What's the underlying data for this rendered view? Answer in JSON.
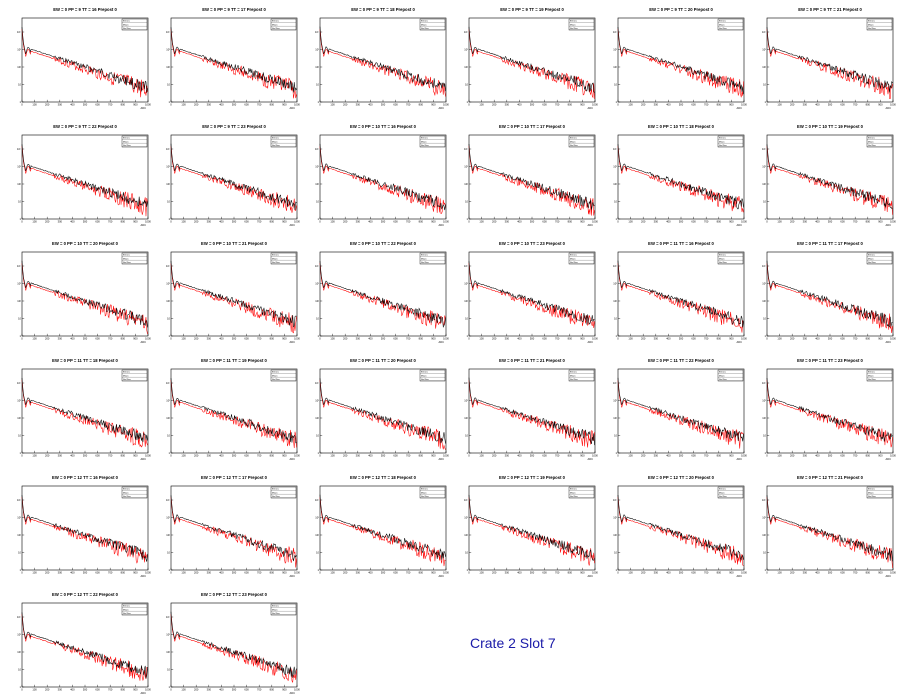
{
  "footer": "Crate 2 Slot 7",
  "colors": {
    "data": "#000000",
    "reference": "#ff0000",
    "footer": "#1a1aa8"
  },
  "chart_data": {
    "type": "line",
    "x_axis_label": "ADC",
    "y_scale": "log",
    "xlim": [
      0,
      1000
    ],
    "x_ticks": [
      0,
      100,
      200,
      300,
      400,
      500,
      600,
      700,
      800,
      900,
      1000
    ],
    "y_ticks": [
      "10⁴",
      "10³",
      "10²",
      "10",
      "1"
    ],
    "stat_labels": [
      "Entries",
      "Mean",
      "Std Dev"
    ],
    "series_colors": [
      "#000000",
      "#ff0000"
    ],
    "panels": [
      {
        "title": "EW = 0 PP = 9 TT = 16 Prepost 0"
      },
      {
        "title": "EW = 0 PP = 9 TT = 17 Prepost 0"
      },
      {
        "title": "EW = 0 PP = 9 TT = 18 Prepost 0"
      },
      {
        "title": "EW = 0 PP = 9 TT = 19 Prepost 0"
      },
      {
        "title": "EW = 0 PP = 9 TT = 20 Prepost 0"
      },
      {
        "title": "EW = 0 PP = 9 TT = 21 Prepost 0"
      },
      {
        "title": "EW = 0 PP = 9 TT = 22 Prepost 0"
      },
      {
        "title": "EW = 0 PP = 9 TT = 23 Prepost 0"
      },
      {
        "title": "EW = 0 PP = 10 TT = 16 Prepost 0"
      },
      {
        "title": "EW = 0 PP = 10 TT = 17 Prepost 0"
      },
      {
        "title": "EW = 0 PP = 10 TT = 18 Prepost 0"
      },
      {
        "title": "EW = 0 PP = 10 TT = 19 Prepost 0"
      },
      {
        "title": "EW = 0 PP = 10 TT = 20 Prepost 0"
      },
      {
        "title": "EW = 0 PP = 10 TT = 21 Prepost 0"
      },
      {
        "title": "EW = 0 PP = 10 TT = 22 Prepost 0"
      },
      {
        "title": "EW = 0 PP = 10 TT = 23 Prepost 0"
      },
      {
        "title": "EW = 0 PP = 11 TT = 16 Prepost 0"
      },
      {
        "title": "EW = 0 PP = 11 TT = 17 Prepost 0"
      },
      {
        "title": "EW = 0 PP = 11 TT = 18 Prepost 0"
      },
      {
        "title": "EW = 0 PP = 11 TT = 19 Prepost 0"
      },
      {
        "title": "EW = 0 PP = 11 TT = 20 Prepost 0"
      },
      {
        "title": "EW = 0 PP = 11 TT = 21 Prepost 0"
      },
      {
        "title": "EW = 0 PP = 11 TT = 22 Prepost 0"
      },
      {
        "title": "EW = 0 PP = 11 TT = 23 Prepost 0"
      },
      {
        "title": "EW = 0 PP = 12 TT = 16 Prepost 0"
      },
      {
        "title": "EW = 0 PP = 12 TT = 17 Prepost 0"
      },
      {
        "title": "EW = 0 PP = 12 TT = 18 Prepost 0"
      },
      {
        "title": "EW = 0 PP = 12 TT = 19 Prepost 0"
      },
      {
        "title": "EW = 0 PP = 12 TT = 20 Prepost 0"
      },
      {
        "title": "EW = 0 PP = 12 TT = 21 Prepost 0"
      },
      {
        "title": "EW = 0 PP = 12 TT = 22 Prepost 0"
      },
      {
        "title": "EW = 0 PP = 12 TT = 23 Prepost 0"
      }
    ]
  }
}
